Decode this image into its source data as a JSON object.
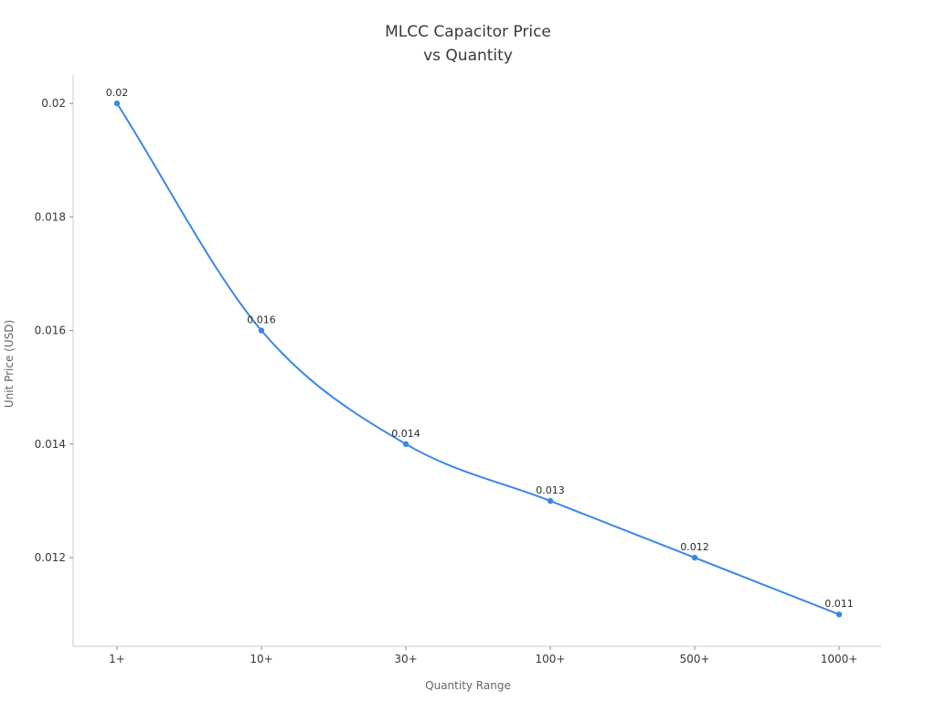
{
  "figure": {
    "title_line1": "MLCC Capacitor Price",
    "title_line2": "vs Quantity",
    "xlabel": "Quantity Range",
    "ylabel": "Unit Price (USD)"
  },
  "chart_data": {
    "type": "line",
    "title": "MLCC Capacitor Price vs Quantity",
    "xlabel": "Quantity Range",
    "ylabel": "Unit Price (USD)",
    "categories": [
      "1+",
      "10+",
      "30+",
      "100+",
      "500+",
      "1000+"
    ],
    "series": [
      {
        "name": "Unit Price (USD)",
        "values": [
          0.02,
          0.016,
          0.014,
          0.013,
          0.012,
          0.011
        ]
      }
    ],
    "point_labels": [
      "0.02",
      "0.016",
      "0.014",
      "0.013",
      "0.012",
      "0.011"
    ],
    "ytick_values": [
      0.012,
      0.014,
      0.016,
      0.018,
      0.02
    ],
    "ytick_labels": [
      "0.012",
      "0.014",
      "0.016",
      "0.018",
      "0.02"
    ],
    "ylim": [
      0.01044,
      0.0205
    ],
    "grid": false,
    "legend": "none",
    "marker": "circle",
    "line_style": "smooth"
  },
  "colors": {
    "line": "#3a87e8",
    "spine": "#cccccc",
    "tick": "#8a8a8a",
    "tick_label": "#363636",
    "axis_label": "#666666",
    "title": "#3a3a3a",
    "point_label": "#2b2b2b",
    "background": "#ffffff"
  }
}
